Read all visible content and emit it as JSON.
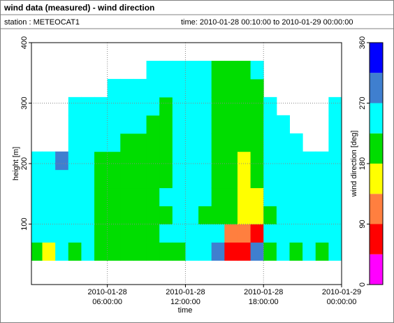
{
  "chart_data": {
    "type": "heatmap",
    "title": "wind data (measured) - wind direction",
    "station": "station : METEOCAT1",
    "period": "time: 2010-01-28 00:10:00 to 2010-01-29 00:00:00",
    "xlabel": "time",
    "ylabel": "height [m]",
    "zlabel": "wind direction [deg]",
    "xlim": [
      0.1667,
      24
    ],
    "xticks": [
      {
        "value": 6,
        "label": "2010-01-28\n06:00:00"
      },
      {
        "value": 12,
        "label": "2010-01-28\n12:00:00"
      },
      {
        "value": 18,
        "label": "2010-01-28\n18:00:00"
      },
      {
        "value": 24,
        "label": "2010-01-29\n00:00:00"
      }
    ],
    "ylim": [
      0,
      400
    ],
    "yticks": [
      100,
      200,
      300,
      400
    ],
    "zlim": [
      0,
      360
    ],
    "zticks": [
      0,
      90,
      180,
      270,
      360
    ],
    "colors": [
      "#ff00ff",
      "#ff0000",
      "#ff7f3f",
      "#ffff00",
      "#00dd00",
      "#00ffff",
      "#3f7fcf",
      "#0000ff"
    ],
    "grid": true,
    "x": [
      0.5,
      1.5,
      2.5,
      3.5,
      4.5,
      5.5,
      6.5,
      7.5,
      8.5,
      9.5,
      10.5,
      11.5,
      12.5,
      13.5,
      14.5,
      15.5,
      16.5,
      17.5,
      18.5,
      19.5,
      20.5,
      21.5,
      22.5,
      23.5
    ],
    "y": [
      55,
      85,
      115,
      145,
      175,
      205,
      235,
      265,
      295,
      325,
      355,
      385
    ],
    "z": [
      [
        200,
        250,
        250,
        250,
        250,
        250,
        null,
        null,
        null,
        null,
        null,
        null
      ],
      [
        160,
        250,
        250,
        250,
        250,
        250,
        null,
        null,
        null,
        null,
        null,
        null
      ],
      [
        250,
        250,
        250,
        250,
        250,
        290,
        null,
        null,
        null,
        null,
        null,
        null
      ],
      [
        200,
        250,
        250,
        250,
        250,
        250,
        250,
        250,
        250,
        null,
        null,
        null
      ],
      [
        250,
        250,
        250,
        250,
        250,
        250,
        250,
        250,
        250,
        null,
        null,
        null
      ],
      [
        200,
        200,
        200,
        200,
        200,
        200,
        250,
        250,
        250,
        null,
        null,
        null
      ],
      [
        200,
        200,
        200,
        200,
        200,
        200,
        250,
        250,
        250,
        250,
        null,
        null
      ],
      [
        200,
        200,
        200,
        200,
        200,
        200,
        200,
        250,
        250,
        250,
        null,
        null
      ],
      [
        200,
        200,
        200,
        200,
        200,
        200,
        200,
        250,
        250,
        250,
        null,
        null
      ],
      [
        200,
        200,
        200,
        200,
        200,
        200,
        200,
        200,
        250,
        250,
        250,
        null
      ],
      [
        200,
        250,
        200,
        250,
        200,
        200,
        200,
        200,
        200,
        250,
        250,
        null
      ],
      [
        200,
        250,
        250,
        250,
        250,
        250,
        250,
        250,
        250,
        250,
        250,
        null
      ],
      [
        250,
        250,
        250,
        250,
        250,
        250,
        250,
        250,
        250,
        250,
        250,
        null
      ],
      [
        250,
        250,
        200,
        250,
        250,
        250,
        250,
        250,
        250,
        250,
        250,
        null
      ],
      [
        290,
        250,
        200,
        200,
        200,
        200,
        200,
        200,
        200,
        200,
        200,
        null
      ],
      [
        70,
        110,
        200,
        200,
        200,
        200,
        200,
        200,
        200,
        200,
        200,
        null
      ],
      [
        70,
        110,
        160,
        160,
        160,
        160,
        200,
        200,
        200,
        200,
        200,
        null
      ],
      [
        290,
        70,
        160,
        160,
        200,
        200,
        200,
        200,
        200,
        200,
        250,
        null
      ],
      [
        200,
        250,
        200,
        250,
        250,
        250,
        250,
        250,
        250,
        null,
        null,
        null
      ],
      [
        250,
        250,
        250,
        250,
        250,
        250,
        250,
        250,
        null,
        null,
        null,
        null
      ],
      [
        200,
        250,
        250,
        250,
        250,
        250,
        250,
        null,
        null,
        null,
        null,
        null
      ],
      [
        250,
        250,
        250,
        250,
        250,
        250,
        null,
        null,
        null,
        null,
        null,
        null
      ],
      [
        200,
        250,
        250,
        250,
        250,
        250,
        null,
        null,
        null,
        null,
        null,
        null
      ],
      [
        250,
        250,
        250,
        250,
        250,
        250,
        250,
        250,
        250,
        null,
        null,
        null
      ]
    ]
  }
}
